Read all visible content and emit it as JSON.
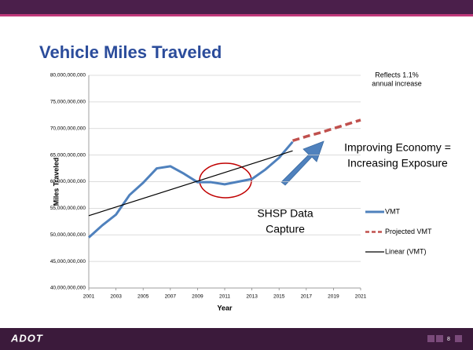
{
  "chart_data": {
    "type": "line",
    "title": "Vehicle Miles Traveled",
    "x_label": "Year",
    "y_label": "Miles Traveled",
    "xlim": [
      2001,
      2021
    ],
    "xticks": [
      2001,
      2003,
      2005,
      2007,
      2009,
      2011,
      2013,
      2015,
      2017,
      2019,
      2021
    ],
    "ylim": [
      40000000000,
      80000000000
    ],
    "yticks": [
      {
        "value": 40000000000,
        "label": "40,000,000,000"
      },
      {
        "value": 45000000000,
        "label": "45,000,000,000"
      },
      {
        "value": 50000000000,
        "label": "50,000,000,000"
      },
      {
        "value": 55000000000,
        "label": "55,000,000,000"
      },
      {
        "value": 60000000000,
        "label": "60,000,000,000"
      },
      {
        "value": 65000000000,
        "label": "65,000,000,000"
      },
      {
        "value": 70000000000,
        "label": "70,000,000,000"
      },
      {
        "value": 75000000000,
        "label": "75,000,000,000"
      },
      {
        "value": 80000000000,
        "label": "80,000,000,000"
      }
    ],
    "grid": true,
    "legend": "right",
    "series": [
      {
        "name": "VMT",
        "color": "#4f81bd",
        "style": "solid",
        "x": [
          2001,
          2002,
          2003,
          2004,
          2005,
          2006,
          2007,
          2008,
          2009,
          2010,
          2011,
          2012,
          2013,
          2014,
          2015,
          2016
        ],
        "values": [
          49500000000,
          51800000000,
          53800000000,
          57500000000,
          59800000000,
          62500000000,
          62900000000,
          61500000000,
          59900000000,
          59900000000,
          59500000000,
          60000000000,
          60500000000,
          62300000000,
          64500000000,
          67500000000
        ]
      },
      {
        "name": "Projected VMT",
        "color": "#c0504d",
        "style": "dashed",
        "x": [
          2016,
          2017,
          2018,
          2019,
          2020,
          2021
        ],
        "values": [
          67700000000,
          68500000000,
          69200000000,
          70000000000,
          70800000000,
          71600000000
        ]
      },
      {
        "name": "Linear (VMT)",
        "color": "#000000",
        "style": "thin",
        "x": [
          2001,
          2016
        ],
        "values": [
          53600000000,
          65800000000
        ]
      }
    ],
    "annotations": [
      {
        "lines": [
          "Reflects 1.1%",
          "annual increase"
        ]
      },
      {
        "lines": [
          "Improving Economy =",
          "Increasing Exposure"
        ]
      },
      {
        "lines": [
          "SHSP Data",
          "Capture"
        ]
      }
    ]
  },
  "footer": {
    "logo": "ADOT",
    "page": "8"
  }
}
